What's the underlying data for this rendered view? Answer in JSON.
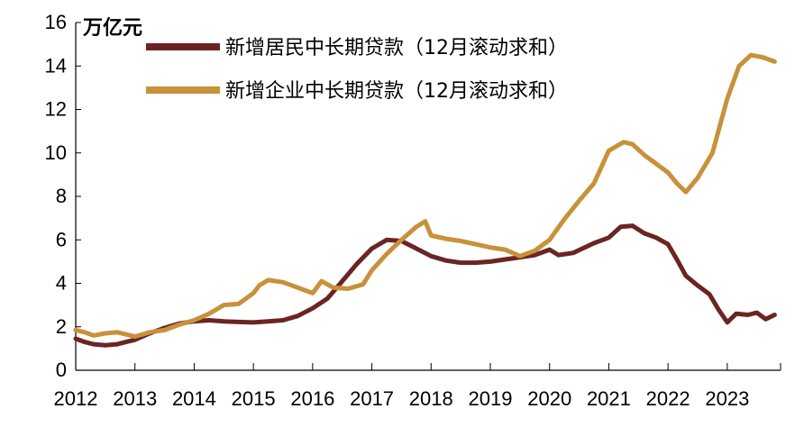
{
  "chart_data": {
    "type": "line",
    "unit_label": "万亿元",
    "xlim": [
      2012,
      2023.9
    ],
    "ylim": [
      0,
      16
    ],
    "y_ticks": [
      0,
      2,
      4,
      6,
      8,
      10,
      12,
      14,
      16
    ],
    "x_ticks": [
      "2012",
      "2013",
      "2014",
      "2015",
      "2016",
      "2017",
      "2018",
      "2019",
      "2020",
      "2021",
      "2022",
      "2023"
    ],
    "legend_position": "top",
    "grid": false,
    "series": [
      {
        "name": "新增居民中长期贷款（12月滚动求和）",
        "color": "#6b2424",
        "points": [
          [
            2012.0,
            1.45
          ],
          [
            2012.15,
            1.3
          ],
          [
            2012.3,
            1.2
          ],
          [
            2012.5,
            1.15
          ],
          [
            2012.7,
            1.2
          ],
          [
            2012.85,
            1.3
          ],
          [
            2013.0,
            1.4
          ],
          [
            2013.25,
            1.7
          ],
          [
            2013.5,
            1.95
          ],
          [
            2013.75,
            2.15
          ],
          [
            2014.0,
            2.25
          ],
          [
            2014.25,
            2.3
          ],
          [
            2014.5,
            2.25
          ],
          [
            2014.75,
            2.22
          ],
          [
            2015.0,
            2.2
          ],
          [
            2015.25,
            2.25
          ],
          [
            2015.5,
            2.3
          ],
          [
            2015.75,
            2.5
          ],
          [
            2016.0,
            2.85
          ],
          [
            2016.25,
            3.3
          ],
          [
            2016.5,
            4.1
          ],
          [
            2016.75,
            4.9
          ],
          [
            2017.0,
            5.6
          ],
          [
            2017.25,
            6.0
          ],
          [
            2017.5,
            5.95
          ],
          [
            2017.75,
            5.6
          ],
          [
            2018.0,
            5.25
          ],
          [
            2018.25,
            5.05
          ],
          [
            2018.5,
            4.95
          ],
          [
            2018.75,
            4.95
          ],
          [
            2019.0,
            5.0
          ],
          [
            2019.25,
            5.1
          ],
          [
            2019.5,
            5.2
          ],
          [
            2019.75,
            5.3
          ],
          [
            2020.0,
            5.55
          ],
          [
            2020.15,
            5.3
          ],
          [
            2020.4,
            5.4
          ],
          [
            2020.75,
            5.85
          ],
          [
            2021.0,
            6.1
          ],
          [
            2021.2,
            6.6
          ],
          [
            2021.4,
            6.65
          ],
          [
            2021.6,
            6.3
          ],
          [
            2021.8,
            6.1
          ],
          [
            2022.0,
            5.8
          ],
          [
            2022.15,
            5.1
          ],
          [
            2022.3,
            4.35
          ],
          [
            2022.5,
            3.9
          ],
          [
            2022.7,
            3.5
          ],
          [
            2022.85,
            2.8
          ],
          [
            2023.0,
            2.2
          ],
          [
            2023.15,
            2.6
          ],
          [
            2023.35,
            2.55
          ],
          [
            2023.5,
            2.65
          ],
          [
            2023.65,
            2.35
          ],
          [
            2023.8,
            2.55
          ]
        ]
      },
      {
        "name": "新增企业中长期贷款（12月滚动求和）",
        "color": "#c8913a",
        "points": [
          [
            2012.0,
            1.85
          ],
          [
            2012.15,
            1.75
          ],
          [
            2012.3,
            1.6
          ],
          [
            2012.5,
            1.7
          ],
          [
            2012.7,
            1.75
          ],
          [
            2013.0,
            1.55
          ],
          [
            2013.25,
            1.75
          ],
          [
            2013.5,
            1.85
          ],
          [
            2013.75,
            2.1
          ],
          [
            2014.0,
            2.3
          ],
          [
            2014.25,
            2.6
          ],
          [
            2014.5,
            3.0
          ],
          [
            2014.75,
            3.05
          ],
          [
            2015.0,
            3.55
          ],
          [
            2015.1,
            3.9
          ],
          [
            2015.25,
            4.15
          ],
          [
            2015.5,
            4.05
          ],
          [
            2015.75,
            3.8
          ],
          [
            2016.0,
            3.55
          ],
          [
            2016.15,
            4.1
          ],
          [
            2016.35,
            3.8
          ],
          [
            2016.6,
            3.75
          ],
          [
            2016.85,
            3.95
          ],
          [
            2017.0,
            4.6
          ],
          [
            2017.25,
            5.35
          ],
          [
            2017.5,
            6.0
          ],
          [
            2017.75,
            6.6
          ],
          [
            2017.9,
            6.85
          ],
          [
            2018.0,
            6.2
          ],
          [
            2018.25,
            6.05
          ],
          [
            2018.5,
            5.95
          ],
          [
            2018.75,
            5.8
          ],
          [
            2019.0,
            5.65
          ],
          [
            2019.25,
            5.55
          ],
          [
            2019.5,
            5.25
          ],
          [
            2019.75,
            5.5
          ],
          [
            2020.0,
            6.0
          ],
          [
            2020.25,
            6.95
          ],
          [
            2020.5,
            7.8
          ],
          [
            2020.75,
            8.6
          ],
          [
            2021.0,
            10.1
          ],
          [
            2021.25,
            10.5
          ],
          [
            2021.4,
            10.4
          ],
          [
            2021.6,
            9.9
          ],
          [
            2021.8,
            9.5
          ],
          [
            2022.0,
            9.1
          ],
          [
            2022.15,
            8.6
          ],
          [
            2022.3,
            8.2
          ],
          [
            2022.5,
            8.85
          ],
          [
            2022.75,
            10.0
          ],
          [
            2023.0,
            12.5
          ],
          [
            2023.2,
            14.0
          ],
          [
            2023.4,
            14.5
          ],
          [
            2023.6,
            14.4
          ],
          [
            2023.8,
            14.2
          ]
        ]
      }
    ]
  }
}
